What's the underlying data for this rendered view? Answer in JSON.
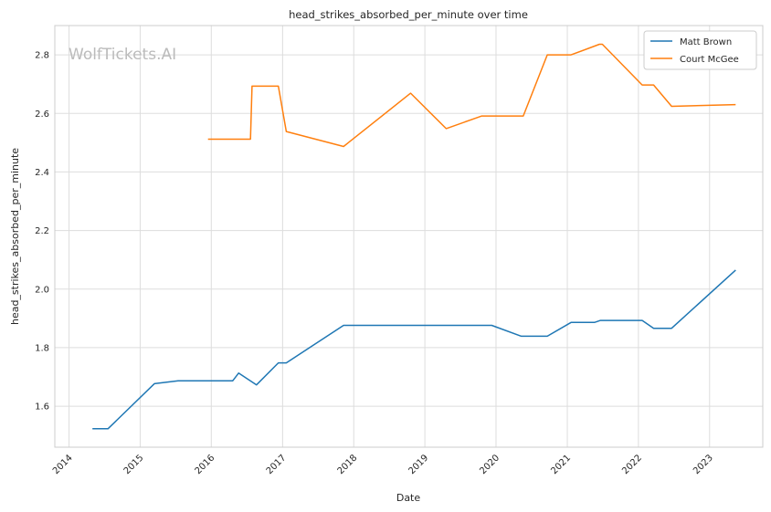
{
  "chart_data": {
    "type": "line",
    "title": "head_strikes_absorbed_per_minute over time",
    "xlabel": "Date",
    "ylabel": "head_strikes_absorbed_per_minute",
    "watermark": "WolfTickets.AI",
    "xlim": [
      "2013-10-20",
      "2023-10-01"
    ],
    "ylim": [
      1.46,
      2.9
    ],
    "x_ticks": [
      "2014-01-01",
      "2015-01-01",
      "2016-01-01",
      "2017-01-01",
      "2018-01-01",
      "2019-01-01",
      "2020-01-01",
      "2021-01-01",
      "2022-01-01",
      "2023-01-01"
    ],
    "x_tick_labels": [
      "2014",
      "2015",
      "2016",
      "2017",
      "2018",
      "2019",
      "2020",
      "2021",
      "2022",
      "2023"
    ],
    "y_ticks": [
      1.6,
      1.8,
      2.0,
      2.2,
      2.4,
      2.6,
      2.8
    ],
    "y_tick_labels": [
      "1.6",
      "1.8",
      "2.0",
      "2.2",
      "2.4",
      "2.6",
      "2.8"
    ],
    "grid": true,
    "legend_position": "top-right",
    "series": [
      {
        "name": "Matt Brown",
        "color": "#1f77b4",
        "points": [
          [
            "2014-05-01",
            1.523
          ],
          [
            "2014-07-20",
            1.523
          ],
          [
            "2015-03-15",
            1.677
          ],
          [
            "2015-07-15",
            1.687
          ],
          [
            "2016-04-20",
            1.687
          ],
          [
            "2016-05-20",
            1.713
          ],
          [
            "2016-08-20",
            1.673
          ],
          [
            "2016-12-10",
            1.748
          ],
          [
            "2017-01-20",
            1.748
          ],
          [
            "2017-11-10",
            1.876
          ],
          [
            "2019-12-10",
            1.876
          ],
          [
            "2020-05-10",
            1.839
          ],
          [
            "2020-09-20",
            1.839
          ],
          [
            "2021-01-20",
            1.886
          ],
          [
            "2021-05-20",
            1.886
          ],
          [
            "2021-06-20",
            1.893
          ],
          [
            "2022-01-20",
            1.893
          ],
          [
            "2022-03-20",
            1.866
          ],
          [
            "2022-06-20",
            1.866
          ],
          [
            "2023-05-15",
            2.065
          ]
        ]
      },
      {
        "name": "Court McGee",
        "color": "#ff7f0e",
        "points": [
          [
            "2015-12-15",
            2.512
          ],
          [
            "2016-07-20",
            2.512
          ],
          [
            "2016-07-28",
            2.693
          ],
          [
            "2016-12-10",
            2.693
          ],
          [
            "2017-01-20",
            2.538
          ],
          [
            "2017-11-10",
            2.487
          ],
          [
            "2018-10-20",
            2.669
          ],
          [
            "2019-04-20",
            2.548
          ],
          [
            "2019-10-20",
            2.591
          ],
          [
            "2020-05-20",
            2.591
          ],
          [
            "2020-09-20",
            2.8
          ],
          [
            "2021-01-20",
            2.8
          ],
          [
            "2021-06-15",
            2.836
          ],
          [
            "2021-06-30",
            2.836
          ],
          [
            "2022-01-20",
            2.697
          ],
          [
            "2022-03-20",
            2.697
          ],
          [
            "2022-06-20",
            2.624
          ],
          [
            "2023-05-15",
            2.63
          ]
        ]
      }
    ]
  }
}
